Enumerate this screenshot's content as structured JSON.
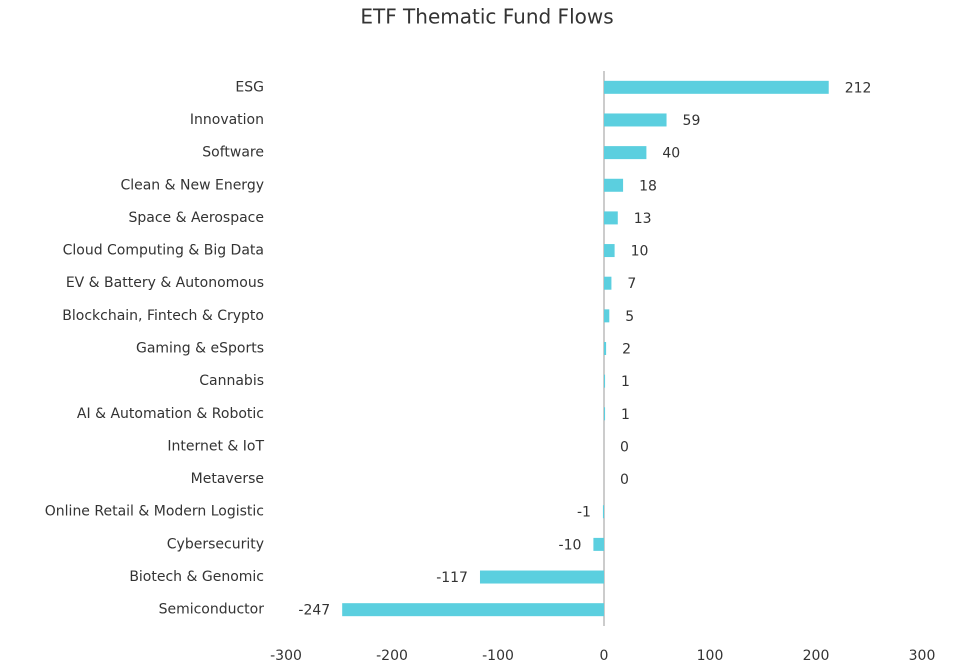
{
  "chart_data": {
    "type": "barh",
    "title": "ETF Thematic Fund Flows",
    "categories": [
      "ESG",
      "Innovation",
      "Software",
      "Clean & New Energy",
      "Space & Aerospace",
      "Cloud Computing & Big Data",
      "EV & Battery & Autonomous",
      "Blockchain, Fintech & Crypto",
      "Gaming & eSports",
      "Cannabis",
      "AI & Automation & Robotic",
      "Internet & IoT",
      "Metaverse",
      "Online Retail & Modern Logistic",
      "Cybersecurity",
      "Biotech & Genomic",
      "Semiconductor"
    ],
    "values": [
      212,
      59,
      40,
      18,
      13,
      10,
      7,
      5,
      2,
      1,
      1,
      0,
      0,
      -1,
      -10,
      -117,
      -247
    ],
    "color": "#5bcfdf",
    "xlim": [
      -300,
      300
    ],
    "xticks": [
      -300,
      -200,
      -100,
      0,
      100,
      200,
      300
    ]
  }
}
